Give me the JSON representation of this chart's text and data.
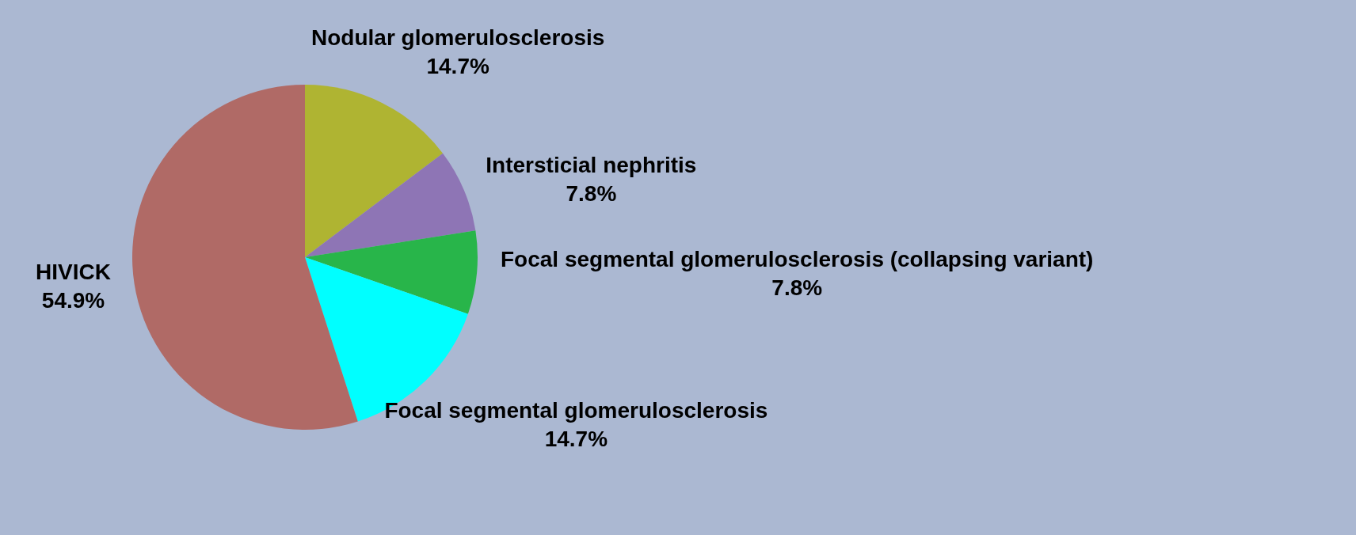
{
  "chart_data": {
    "type": "pie",
    "categories": [
      "Nodular glomerulosclerosis",
      "Intersticial nephritis",
      "Focal segmental glomerulosclerosis (collapsing variant)",
      "Focal segmental glomerulosclerosis",
      "HIVICK"
    ],
    "values": [
      14.7,
      7.8,
      7.8,
      14.7,
      54.9
    ],
    "colors": [
      "#afb432",
      "#8e75b5",
      "#28b54a",
      "#00ffff",
      "#b06a66"
    ],
    "value_labels": [
      "14.7%",
      "7.8%",
      "7.8%",
      "14.7%",
      "54.9%"
    ],
    "legend": false
  }
}
